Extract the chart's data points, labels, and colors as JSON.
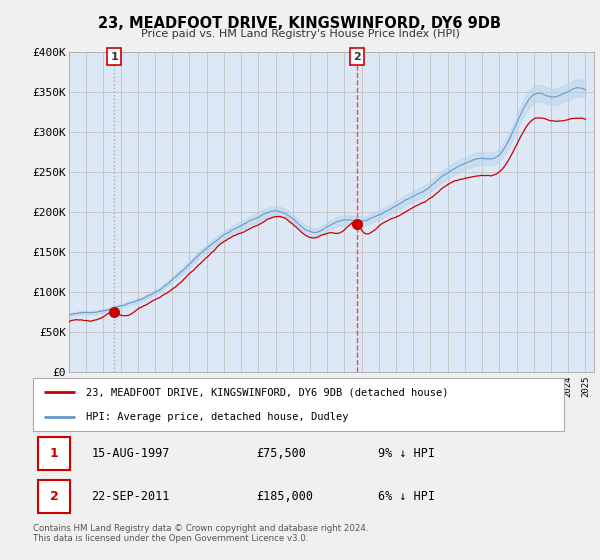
{
  "title": "23, MEADFOOT DRIVE, KINGSWINFORD, DY6 9DB",
  "subtitle": "Price paid vs. HM Land Registry's House Price Index (HPI)",
  "legend_line1": "23, MEADFOOT DRIVE, KINGSWINFORD, DY6 9DB (detached house)",
  "legend_line2": "HPI: Average price, detached house, Dudley",
  "purchase1_date": "15-AUG-1997",
  "purchase1_price": 75500,
  "purchase1_label": "£75,500",
  "purchase1_hpi": "9% ↓ HPI",
  "purchase2_date": "22-SEP-2011",
  "purchase2_price": 185000,
  "purchase2_label": "£185,000",
  "purchase2_hpi": "6% ↓ HPI",
  "footer": "Contains HM Land Registry data © Crown copyright and database right 2024.\nThis data is licensed under the Open Government Licence v3.0.",
  "ylim": [
    0,
    400000
  ],
  "yticks": [
    0,
    50000,
    100000,
    150000,
    200000,
    250000,
    300000,
    350000,
    400000
  ],
  "ytick_labels": [
    "£0",
    "£50K",
    "£100K",
    "£150K",
    "£200K",
    "£250K",
    "£300K",
    "£350K",
    "£400K"
  ],
  "bg_color": "#f0f0f0",
  "plot_bg_color": "#dce8f5",
  "red_line_color": "#cc0000",
  "blue_line_color": "#6699cc",
  "grid_color": "#c0c0c0",
  "purchase1_x": 1997.62,
  "purchase2_x": 2011.72,
  "xlim_start": 1995.0,
  "xlim_end": 2025.5
}
